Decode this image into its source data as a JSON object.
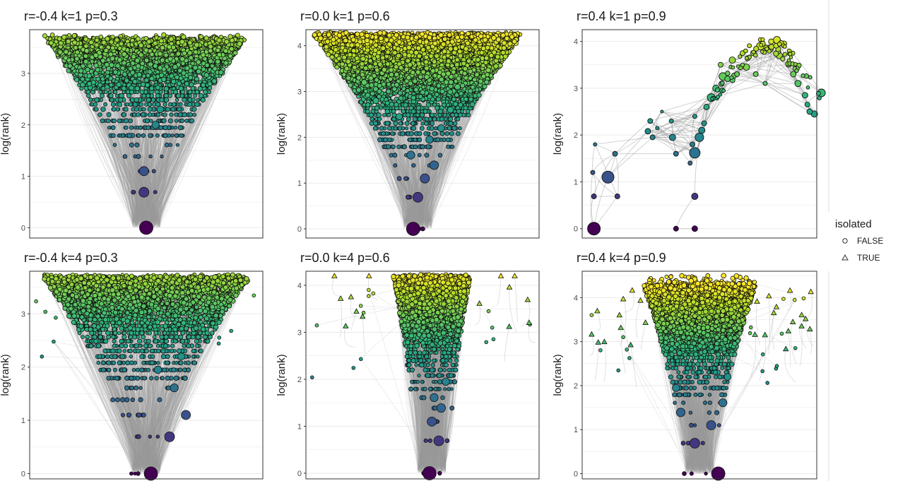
{
  "chart_data": [
    {
      "type": "scatter",
      "title": "r=-0.4 k=1 p=0.3",
      "ylabel": "log(rank)",
      "yticks": [
        0,
        1,
        2,
        3
      ],
      "ylim": [
        -0.2,
        3.85
      ],
      "levels": [
        0,
        0.693,
        1.099,
        1.386,
        1.609,
        1.792,
        1.946,
        2.079,
        2.197,
        2.303,
        2.398,
        2.485,
        2.565,
        2.639,
        2.708,
        2.773,
        2.833,
        2.89,
        2.944,
        2.996,
        3.045,
        3.091,
        3.135,
        3.178,
        3.219,
        3.258,
        3.296,
        3.332,
        3.367,
        3.401,
        3.434,
        3.466,
        3.497,
        3.526,
        3.555,
        3.584,
        3.611,
        3.638,
        3.664
      ],
      "big_nodes": [
        [
          0,
          0
        ],
        [
          -0.01,
          0.69
        ],
        [
          -0.01,
          1.1
        ],
        [
          0.04,
          2.0
        ],
        [
          0.06,
          2.3
        ]
      ]
    },
    {
      "type": "scatter",
      "title": "r=0.0 k=1 p=0.6",
      "ylabel": "log(rank)",
      "yticks": [
        0,
        1,
        2,
        3,
        4
      ],
      "ylim": [
        -0.2,
        4.35
      ],
      "levels": [
        0,
        0.693,
        1.099,
        1.386,
        1.609,
        1.792,
        1.946,
        2.079,
        2.197,
        2.303,
        2.398,
        2.485,
        2.565,
        2.639,
        2.708,
        2.773,
        2.833,
        2.89,
        2.944,
        2.996,
        3.045,
        3.091,
        3.135,
        3.178,
        3.219,
        3.258,
        3.296,
        3.332,
        3.367,
        3.401,
        3.434,
        3.466,
        3.497,
        3.526,
        3.555,
        3.584,
        3.611,
        3.638,
        3.664,
        3.689,
        3.714,
        3.738,
        3.761,
        3.784,
        3.807,
        3.829,
        3.85,
        3.871,
        3.892,
        3.912,
        3.932,
        3.951,
        3.97,
        3.989,
        4.007,
        4.025,
        4.043,
        4.06,
        4.078,
        4.094,
        4.111,
        4.127,
        4.143,
        4.159,
        4.174,
        4.19,
        4.205,
        4.22,
        4.234,
        4.248
      ],
      "big_nodes": [
        [
          -0.04,
          0
        ],
        [
          -0.02,
          0.69
        ],
        [
          0.01,
          1.1
        ],
        [
          0.05,
          1.39
        ],
        [
          -0.05,
          1.61
        ],
        [
          0.03,
          1.95
        ],
        [
          0.08,
          2.2
        ],
        [
          -0.1,
          2.45
        ],
        [
          0.12,
          2.6
        ],
        [
          -0.2,
          2.8
        ],
        [
          0.15,
          3.1
        ],
        [
          -0.25,
          3.2
        ]
      ]
    },
    {
      "type": "scatter",
      "title": "r=0.4 k=1 p=0.9",
      "ylabel": "log(rank)",
      "yticks": [
        0,
        1,
        2,
        3,
        4
      ],
      "ylim": [
        -0.2,
        4.25
      ],
      "nodes": [
        [
          0.05,
          0,
          18
        ],
        [
          0.05,
          0.69,
          7
        ],
        [
          0.11,
          1.1,
          17
        ],
        [
          0.045,
          1.2,
          6
        ],
        [
          0.15,
          0.69,
          7
        ],
        [
          0.14,
          1.6,
          7
        ],
        [
          0.055,
          1.8,
          5
        ],
        [
          0.3,
          1.95,
          7
        ],
        [
          0.28,
          2.08,
          8
        ],
        [
          0.29,
          2.3,
          7
        ],
        [
          0.32,
          2.15,
          5
        ],
        [
          0.34,
          2.5,
          4
        ],
        [
          0.385,
          1.95,
          9
        ],
        [
          0.4,
          1.6,
          7
        ],
        [
          0.38,
          2.3,
          6
        ],
        [
          0.4,
          0,
          7
        ],
        [
          0.48,
          0,
          8
        ],
        [
          0.48,
          0.69,
          9
        ],
        [
          0.48,
          1.62,
          15
        ],
        [
          0.5,
          1.95,
          12
        ],
        [
          0.51,
          2.1,
          9
        ],
        [
          0.48,
          2.4,
          6
        ],
        [
          0.46,
          1.4,
          6
        ],
        [
          0.47,
          1.8,
          7
        ],
        [
          0.52,
          2.25,
          7
        ],
        [
          0.53,
          2.6,
          8
        ],
        [
          0.55,
          2.8,
          11
        ],
        [
          0.57,
          3.0,
          9
        ],
        [
          0.6,
          3.25,
          11
        ],
        [
          0.59,
          3.5,
          7
        ],
        [
          0.62,
          3.2,
          8
        ],
        [
          0.64,
          3.6,
          9
        ],
        [
          0.66,
          3.3,
          7
        ],
        [
          0.7,
          3.45,
          9
        ],
        [
          0.73,
          3.75,
          8
        ],
        [
          0.76,
          3.9,
          11
        ],
        [
          0.8,
          3.85,
          10
        ],
        [
          0.83,
          4.03,
          10
        ],
        [
          0.86,
          3.95,
          8
        ],
        [
          0.84,
          3.7,
          9
        ],
        [
          0.88,
          3.5,
          7
        ],
        [
          0.9,
          3.3,
          8
        ],
        [
          0.92,
          3.1,
          9
        ],
        [
          0.95,
          2.85,
          8
        ],
        [
          0.96,
          2.65,
          7
        ],
        [
          0.97,
          2.5,
          8
        ],
        [
          0.99,
          2.45,
          9
        ],
        [
          1.02,
          2.9,
          11
        ],
        [
          0.74,
          3.3,
          7
        ],
        [
          0.78,
          3.1,
          6
        ]
      ]
    },
    {
      "type": "scatter",
      "title": "r=-0.4 k=4 p=0.3",
      "ylabel": "log(rank)",
      "yticks": [
        0,
        1,
        2,
        3
      ],
      "ylim": [
        -0.1,
        3.8
      ],
      "levels": [
        0,
        0.693,
        1.099,
        1.386,
        1.609,
        1.792,
        1.946,
        2.079,
        2.197,
        2.303,
        2.398,
        2.485,
        2.565,
        2.639,
        2.708,
        2.773,
        2.833,
        2.89,
        2.944,
        2.996,
        3.045,
        3.091,
        3.135,
        3.178,
        3.219,
        3.258,
        3.296,
        3.332,
        3.367,
        3.401,
        3.434,
        3.466,
        3.497,
        3.526,
        3.555,
        3.584,
        3.611,
        3.638,
        3.664,
        3.689
      ],
      "big_nodes": [
        [
          0.02,
          0
        ],
        [
          0.1,
          0.69
        ],
        [
          0.17,
          1.1
        ],
        [
          0.12,
          1.61
        ],
        [
          0.05,
          1.95
        ],
        [
          0.15,
          2.2
        ]
      ]
    },
    {
      "type": "scatter",
      "title": "r=0.0 k=4 p=0.6",
      "ylabel": "log(rank)",
      "yticks": [
        0,
        1,
        2,
        3,
        4
      ],
      "ylim": [
        -0.12,
        4.3
      ],
      "levels": [
        0,
        0.693,
        1.099,
        1.386,
        1.609,
        1.792,
        1.946,
        2.079,
        2.197,
        2.303,
        2.398,
        2.485,
        2.565,
        2.639,
        2.708,
        2.773,
        2.833,
        2.89,
        2.944,
        2.996,
        3.045,
        3.091,
        3.135,
        3.178,
        3.219,
        3.258,
        3.296,
        3.332,
        3.367,
        3.401,
        3.434,
        3.466,
        3.497,
        3.526,
        3.555,
        3.584,
        3.611,
        3.638,
        3.664,
        3.689,
        3.714,
        3.738,
        3.761,
        3.784,
        3.807,
        3.829,
        3.85,
        3.871,
        3.892,
        3.912,
        3.932,
        3.951,
        3.97,
        3.989,
        4.007,
        4.025,
        4.043,
        4.06,
        4.078,
        4.094,
        4.111,
        4.127,
        4.143,
        4.159,
        4.174,
        4.19
      ],
      "big_nodes": [
        [
          0.03,
          0
        ],
        [
          0.07,
          0.69
        ],
        [
          0.04,
          1.1
        ],
        [
          0.08,
          1.39
        ],
        [
          0.05,
          1.61
        ],
        [
          0.1,
          1.95
        ]
      ]
    },
    {
      "type": "scatter",
      "title": "r=0.4 k=4 p=0.9",
      "ylabel": "log(rank)",
      "yticks": [
        0,
        1,
        2,
        3,
        4
      ],
      "ylim": [
        -0.12,
        4.6
      ],
      "levels": [
        0,
        0.693,
        1.099,
        1.386,
        1.609,
        1.792,
        1.946,
        2.079,
        2.197,
        2.303,
        2.398,
        2.485,
        2.565,
        2.639,
        2.708,
        2.773,
        2.833,
        2.89,
        2.944,
        2.996,
        3.045,
        3.091,
        3.135,
        3.178,
        3.219,
        3.258,
        3.296,
        3.332,
        3.367,
        3.401,
        3.434,
        3.466,
        3.497,
        3.526,
        3.555,
        3.584,
        3.611,
        3.638,
        3.664,
        3.689,
        3.714,
        3.738,
        3.761,
        3.784,
        3.807,
        3.829,
        3.85,
        3.871,
        3.892,
        3.912,
        3.932,
        3.951,
        3.97,
        3.989,
        4.007,
        4.025,
        4.043,
        4.06,
        4.078,
        4.094,
        4.111,
        4.127,
        4.143,
        4.159,
        4.174,
        4.19,
        4.205,
        4.22,
        4.234,
        4.248,
        4.263,
        4.277,
        4.29
      ],
      "big_nodes": [
        [
          0.08,
          0
        ],
        [
          -0.02,
          0.69
        ],
        [
          0.05,
          1.1
        ],
        [
          -0.08,
          1.39
        ],
        [
          0.1,
          1.61
        ],
        [
          -0.1,
          1.95
        ],
        [
          0.12,
          2.2
        ]
      ]
    }
  ],
  "legend": {
    "title": "isolated",
    "entries": [
      {
        "label": "FALSE",
        "shape": "circle"
      },
      {
        "label": "TRUE",
        "shape": "triangle"
      }
    ]
  },
  "colors": {
    "viridis": [
      "#fde725",
      "#b5de2b",
      "#6ece58",
      "#35b779",
      "#1f9e89",
      "#26828e",
      "#31688e",
      "#3e4989",
      "#482878",
      "#440154"
    ],
    "edge": "#999999",
    "grid": "#ebebeb",
    "panel_border": "#333333"
  }
}
